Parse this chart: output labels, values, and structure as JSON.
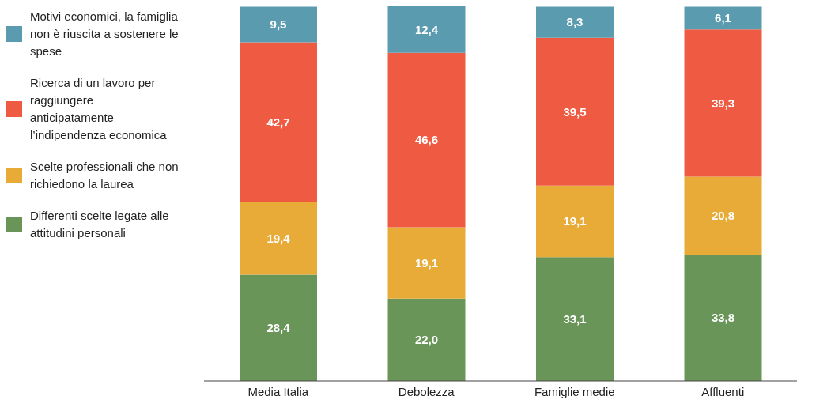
{
  "chart_data": {
    "type": "bar",
    "stacked": true,
    "legend": "left",
    "categories": [
      "Media Italia",
      "Debolezza",
      "Famiglie medie",
      "Affluenti"
    ],
    "series": [
      {
        "name": "Differenti scelte legate alle attitudini personali",
        "color": "#6a9559",
        "values": [
          28.4,
          22.0,
          33.1,
          33.8
        ],
        "value_labels": [
          "28,4",
          "22,0",
          "33,1",
          "33,8"
        ]
      },
      {
        "name": "Scelte professionali che non richiedono la laurea",
        "color": "#e8ab38",
        "values": [
          19.4,
          19.1,
          19.1,
          20.8
        ],
        "value_labels": [
          "19,4",
          "19,1",
          "19,1",
          "20,8"
        ]
      },
      {
        "name": "Ricerca di un lavoro per raggiungere anticipatamente l’indipendenza economica",
        "color": "#ee5b42",
        "values": [
          42.7,
          46.6,
          39.5,
          39.3
        ],
        "value_labels": [
          "42,7",
          "46,6",
          "39,5",
          "39,3"
        ]
      },
      {
        "name": "Motivi economici, la famiglia non è riuscita a sostenere le spese",
        "color": "#5b9bb0",
        "values": [
          9.5,
          12.4,
          8.3,
          6.1
        ],
        "value_labels": [
          "9,5",
          "12,4",
          "8,3",
          "6,1"
        ]
      }
    ]
  }
}
